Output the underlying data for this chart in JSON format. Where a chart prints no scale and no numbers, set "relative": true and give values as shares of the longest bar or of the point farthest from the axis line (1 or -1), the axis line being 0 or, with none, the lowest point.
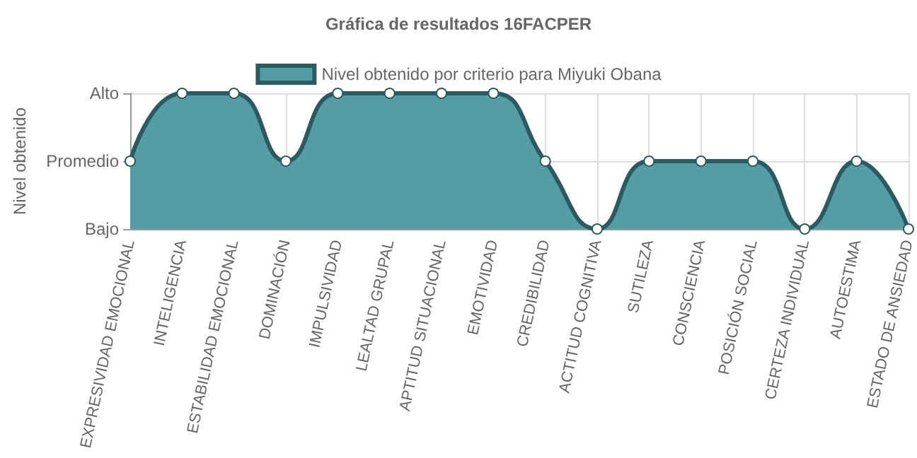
{
  "chart_data": {
    "type": "area",
    "title": "Gráfica de resultados 16FACPER",
    "ylabel": "Nivel obtenido",
    "categories": [
      "EXPRESIVIDAD EMOCIONAL",
      "INTELIGENCIA",
      "ESTABILIDAD EMOCIONAL",
      "DOMINACIÓN",
      "IMPULSIVIDAD",
      "LEALTAD GRUPAL",
      "APTITUD SITUACIONAL",
      "EMOTIVIDAD",
      "CREDIBILIDAD",
      "ACTITUD COGNITIVA",
      "SUTILEZA",
      "CONSCIENCIA",
      "POSICIÓN SOCIAL",
      "CERTEZA INDIVIDUAL",
      "AUTOESTIMA",
      "ESTADO DE ANSIEDAD"
    ],
    "y_categories": [
      "Alto",
      "Promedio",
      "Bajo"
    ],
    "relative": true,
    "series": [
      {
        "name": "Nivel obtenido por criterio para Miyuki Obana",
        "color": "#2b5b61",
        "values": [
          0.5,
          1,
          1,
          0.5,
          1,
          1,
          1,
          1,
          0.5,
          0,
          0.5,
          0.5,
          0.5,
          0,
          0.5,
          0
        ]
      }
    ],
    "grid": true,
    "legend": "top",
    "marker": "circle",
    "line_style": "solid"
  }
}
